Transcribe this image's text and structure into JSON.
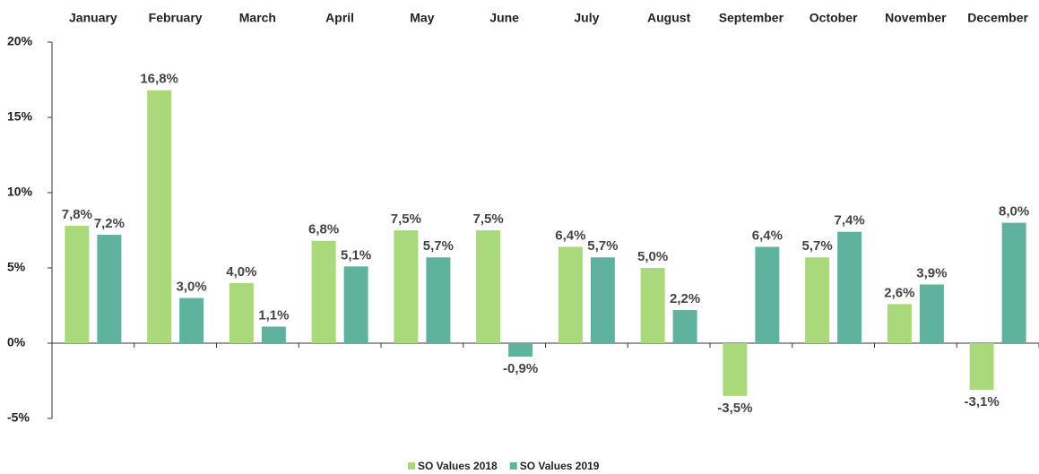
{
  "chart_data": {
    "type": "bar",
    "categories": [
      "January",
      "February",
      "March",
      "April",
      "May",
      "June",
      "July",
      "August",
      "September",
      "October",
      "November",
      "December"
    ],
    "series": [
      {
        "name": "SO Values 2018",
        "color": "#a9d97a",
        "values": [
          7.8,
          16.8,
          4.0,
          6.8,
          7.5,
          7.5,
          6.4,
          5.0,
          -3.5,
          5.7,
          2.6,
          -3.1
        ],
        "value_labels": [
          "7,8%",
          "16,8%",
          "4,0%",
          "6,8%",
          "7,5%",
          "7,5%",
          "6,4%",
          "5,0%",
          "-3,5%",
          "5,7%",
          "2,6%",
          "-3,1%"
        ]
      },
      {
        "name": "SO Values 2019",
        "color": "#5fb39e",
        "values": [
          7.2,
          3.0,
          1.1,
          5.1,
          5.7,
          -0.9,
          5.7,
          2.2,
          6.4,
          7.4,
          3.9,
          8.0
        ],
        "value_labels": [
          "7,2%",
          "3,0%",
          "1,1%",
          "5,1%",
          "5,7%",
          "-0,9%",
          "5,7%",
          "2,2%",
          "6,4%",
          "7,4%",
          "3,9%",
          "8,0%"
        ]
      }
    ],
    "ylim": [
      -5,
      20
    ],
    "yticks": [
      {
        "value": -5,
        "label": "-5%"
      },
      {
        "value": 0,
        "label": "0%"
      },
      {
        "value": 5,
        "label": "5%"
      },
      {
        "value": 10,
        "label": "10%"
      },
      {
        "value": 15,
        "label": "15%"
      },
      {
        "value": 20,
        "label": "20%"
      }
    ],
    "legend": "bottom"
  }
}
